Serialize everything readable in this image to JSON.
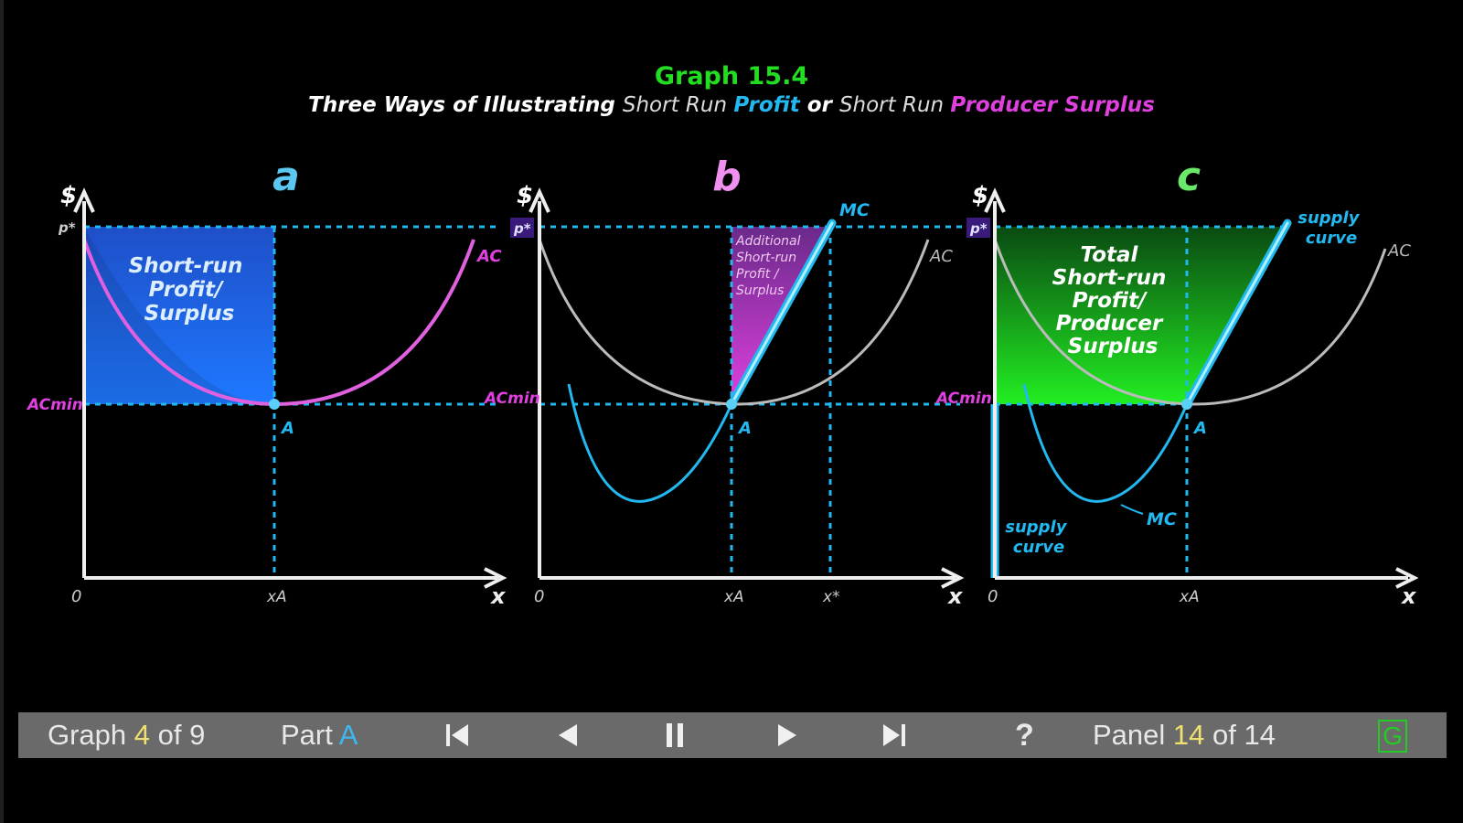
{
  "title": "Graph 15.4",
  "subtitle": {
    "part1": "Three Ways of Illustrating ",
    "part2": "Short Run ",
    "part3": "Profit",
    "part4": " or ",
    "part5": "Short Run ",
    "part6": "Producer Surplus"
  },
  "panels": [
    {
      "letter": "a",
      "y_axis": "$",
      "x_axis": "x",
      "origin": "0",
      "price_label": "p*",
      "acmin_label": "ACmin",
      "point_label": "A",
      "xa_label": "xA",
      "curve_label": "AC",
      "area_text": [
        "Short-run",
        "Profit/",
        "Surplus"
      ]
    },
    {
      "letter": "b",
      "y_axis": "$",
      "x_axis": "x",
      "origin": "0",
      "price_label": "p*",
      "acmin_label": "ACmin",
      "point_label": "A",
      "xa_label": "xA",
      "xstar_label": "x*",
      "mc_label": "MC",
      "ac_label": "AC",
      "area_text": [
        "Additional",
        "Short-run",
        "Profit /",
        "Surplus"
      ]
    },
    {
      "letter": "c",
      "y_axis": "$",
      "x_axis": "x",
      "origin": "0",
      "price_label": "p*",
      "acmin_label": "ACmin",
      "point_label": "A",
      "xa_label": "xA",
      "supply_top": [
        "supply",
        "curve"
      ],
      "supply_bottom": [
        "supply",
        "curve"
      ],
      "mc_label": "MC",
      "ac_label": "AC",
      "area_text": [
        "Total",
        "Short-run",
        "Profit/",
        "Producer",
        "Surplus"
      ]
    }
  ],
  "nav": {
    "graph_prefix": "Graph ",
    "graph_num": "4",
    "graph_suffix": " of 9",
    "part_prefix": "Part ",
    "part_value": "A",
    "help": "?",
    "panel_prefix": "Panel ",
    "panel_num": "14",
    "panel_suffix": " of 14",
    "g_label": "G"
  },
  "colors": {
    "cyan": "#22b8f0",
    "magenta": "#e040e0",
    "green": "#22dd22",
    "gray_curve": "#bbbbbb"
  }
}
